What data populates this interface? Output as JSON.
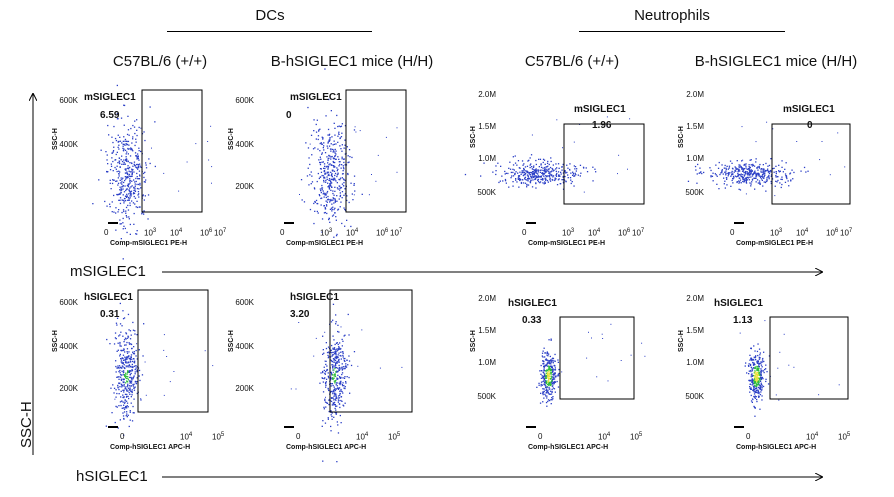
{
  "groups": [
    {
      "title": "DCs"
    },
    {
      "title": "Neutrophils"
    }
  ],
  "columns": [
    {
      "title": "C57BL/6 (+/+)"
    },
    {
      "title": "B-hSIGLEC1 mice  (H/H)"
    },
    {
      "title": "C57BL/6 (+/+)"
    },
    {
      "title": "B-hSIGLEC1 mice (H/H)"
    }
  ],
  "axes": {
    "y_axis_label": "SSC-H",
    "row1_axis_label": "mSIGLEC1",
    "row2_axis_label": "hSIGLEC1",
    "row1_xlabel": "Comp-mSIGLEC1 PE-H",
    "row2_xlabel": "Comp-hSIGLEC1 APC-H",
    "panel_ylabel": "SSC-H",
    "dc_yticks": [
      "600K",
      "400K",
      "200K"
    ],
    "neu_yticks": [
      "2.0M",
      "1.5M",
      "1.0M",
      "500K"
    ],
    "row1_xticks": [
      "0",
      "10",
      "10",
      "10",
      "10"
    ],
    "row1_xtick_exp": [
      "",
      "3",
      "4",
      "6",
      "7"
    ],
    "row2_xticks": [
      "0",
      "10",
      "10"
    ],
    "row2_xtick_exp": [
      "",
      "4",
      "5"
    ]
  },
  "panels": [
    {
      "row": 1,
      "col": 1,
      "cell_type": "DCs",
      "gate": "mSIGLEC1",
      "percent": "6.59",
      "color_density": "low"
    },
    {
      "row": 1,
      "col": 2,
      "cell_type": "DCs",
      "gate": "mSIGLEC1",
      "percent": "0",
      "color_density": "low"
    },
    {
      "row": 1,
      "col": 3,
      "cell_type": "Neutrophils",
      "gate": "mSIGLEC1",
      "percent": "1.96",
      "color_density": "low"
    },
    {
      "row": 1,
      "col": 4,
      "cell_type": "Neutrophils",
      "gate": "mSIGLEC1",
      "percent": "0",
      "color_density": "low"
    },
    {
      "row": 2,
      "col": 1,
      "cell_type": "DCs",
      "gate": "hSIGLEC1",
      "percent": "0.31",
      "color_density": "medium"
    },
    {
      "row": 2,
      "col": 2,
      "cell_type": "DCs",
      "gate": "hSIGLEC1",
      "percent": "3.20",
      "color_density": "medium"
    },
    {
      "row": 2,
      "col": 3,
      "cell_type": "Neutrophils",
      "gate": "hSIGLEC1",
      "percent": "0.33",
      "color_density": "high"
    },
    {
      "row": 2,
      "col": 4,
      "cell_type": "Neutrophils",
      "gate": "hSIGLEC1",
      "percent": "1.13",
      "color_density": "high"
    }
  ],
  "colors": {
    "dots": "#2b3fc6",
    "dense_green": "#2ebd3a",
    "dense_yellow": "#e8e23a",
    "dense_red": "#e03b2a",
    "text": "#111111"
  }
}
